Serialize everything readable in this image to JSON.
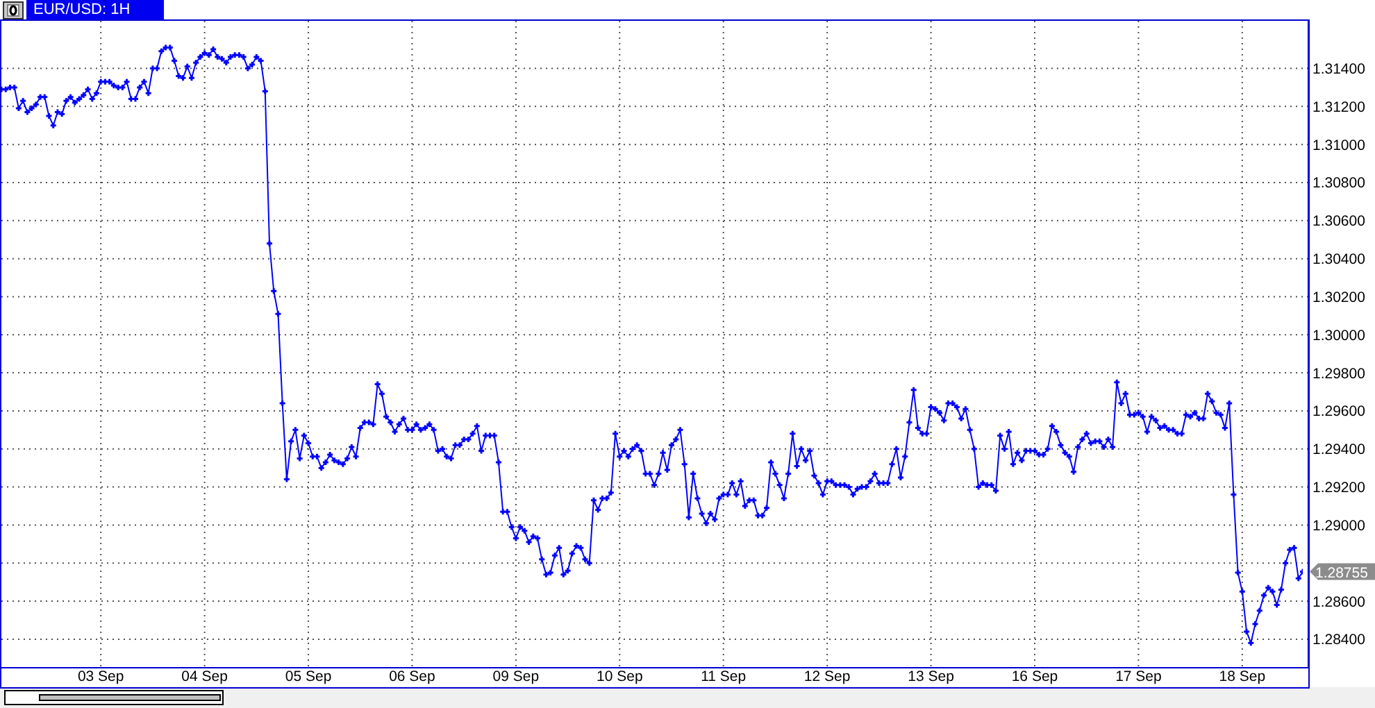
{
  "chart_data": {
    "type": "line",
    "title": "EUR/USD: 1H",
    "categories": [
      null,
      null,
      null,
      null,
      null,
      null,
      null,
      null,
      null,
      null,
      null,
      null,
      null,
      null,
      null,
      null,
      null,
      null,
      null,
      null,
      null,
      null,
      null,
      "03 Sep",
      null,
      null,
      null,
      null,
      null,
      null,
      null,
      null,
      null,
      null,
      null,
      null,
      null,
      null,
      null,
      null,
      null,
      null,
      null,
      null,
      null,
      null,
      null,
      "04 Sep",
      null,
      null,
      null,
      null,
      null,
      null,
      null,
      null,
      null,
      null,
      null,
      null,
      null,
      null,
      null,
      null,
      null,
      null,
      null,
      null,
      null,
      null,
      null,
      "05 Sep",
      null,
      null,
      null,
      null,
      null,
      null,
      null,
      null,
      null,
      null,
      null,
      null,
      null,
      null,
      null,
      null,
      null,
      null,
      null,
      null,
      null,
      null,
      null,
      "06 Sep",
      null,
      null,
      null,
      null,
      null,
      null,
      null,
      null,
      null,
      null,
      null,
      null,
      null,
      null,
      null,
      null,
      null,
      null,
      null,
      null,
      null,
      null,
      null,
      "09 Sep",
      null,
      null,
      null,
      null,
      null,
      null,
      null,
      null,
      null,
      null,
      null,
      null,
      null,
      null,
      null,
      null,
      null,
      null,
      null,
      null,
      null,
      null,
      null,
      "10 Sep",
      null,
      null,
      null,
      null,
      null,
      null,
      null,
      null,
      null,
      null,
      null,
      null,
      null,
      null,
      null,
      null,
      null,
      null,
      null,
      null,
      null,
      null,
      null,
      "11 Sep",
      null,
      null,
      null,
      null,
      null,
      null,
      null,
      null,
      null,
      null,
      null,
      null,
      null,
      null,
      null,
      null,
      null,
      null,
      null,
      null,
      null,
      null,
      null,
      "12 Sep",
      null,
      null,
      null,
      null,
      null,
      null,
      null,
      null,
      null,
      null,
      null,
      null,
      null,
      null,
      null,
      null,
      null,
      null,
      null,
      null,
      null,
      null,
      null,
      "13 Sep",
      null,
      null,
      null,
      null,
      null,
      null,
      null,
      null,
      null,
      null,
      null,
      null,
      null,
      null,
      null,
      null,
      null,
      null,
      null,
      null,
      null,
      null,
      null,
      "16 Sep",
      null,
      null,
      null,
      null,
      null,
      null,
      null,
      null,
      null,
      null,
      null,
      null,
      null,
      null,
      null,
      null,
      null,
      null,
      null,
      null,
      null,
      null,
      null,
      "17 Sep",
      null,
      null,
      null,
      null,
      null,
      null,
      null,
      null,
      null,
      null,
      null,
      null,
      null,
      null,
      null,
      null,
      null,
      null,
      null,
      null,
      null,
      null,
      null,
      "18 Sep",
      null,
      null,
      null,
      null,
      null,
      null,
      null,
      null,
      null,
      null,
      null,
      null,
      null,
      null
    ],
    "values": [
      1.3129,
      1.3129,
      1.313,
      1.313,
      1.3119,
      1.3123,
      1.3117,
      1.3119,
      1.3121,
      1.3125,
      1.3125,
      1.3115,
      1.311,
      1.3117,
      1.3116,
      1.3123,
      1.3125,
      1.3122,
      1.3124,
      1.3126,
      1.3129,
      1.3124,
      1.3127,
      1.3133,
      1.3133,
      1.3133,
      1.3131,
      1.313,
      1.313,
      1.3133,
      1.3124,
      1.3124,
      1.313,
      1.3133,
      1.3127,
      1.314,
      1.314,
      1.3149,
      1.3151,
      1.3151,
      1.3144,
      1.3136,
      1.3135,
      1.3141,
      1.3135,
      1.3143,
      1.3146,
      1.3148,
      1.3147,
      1.315,
      1.3146,
      1.3145,
      1.3143,
      1.3146,
      1.3147,
      1.3147,
      1.3146,
      1.314,
      1.3142,
      1.3146,
      1.3144,
      1.3128,
      1.3048,
      1.3023,
      1.3011,
      1.2964,
      1.2924,
      1.2944,
      1.295,
      1.2935,
      1.2947,
      1.2943,
      1.2936,
      1.2936,
      1.293,
      1.2933,
      1.2937,
      1.2934,
      1.2933,
      1.2932,
      1.2935,
      1.2941,
      1.2936,
      1.2951,
      1.2954,
      1.2954,
      1.2953,
      1.2974,
      1.2969,
      1.2957,
      1.2954,
      1.2949,
      1.2953,
      1.2956,
      1.295,
      1.295,
      1.2953,
      1.295,
      1.2951,
      1.2953,
      1.295,
      1.2939,
      1.294,
      1.2936,
      1.2935,
      1.2942,
      1.2942,
      1.2945,
      1.2945,
      1.2948,
      1.2952,
      1.2939,
      1.2947,
      1.2947,
      1.2947,
      1.2933,
      1.2907,
      1.2907,
      1.2899,
      1.2893,
      1.2899,
      1.2897,
      1.2891,
      1.2894,
      1.2893,
      1.2882,
      1.2874,
      1.2875,
      1.2884,
      1.2888,
      1.2874,
      1.2876,
      1.2885,
      1.2889,
      1.2888,
      1.2882,
      1.288,
      1.2913,
      1.2908,
      1.2914,
      1.2914,
      1.2917,
      1.2948,
      1.2936,
      1.2939,
      1.2936,
      1.294,
      1.2942,
      1.2939,
      1.2927,
      1.2927,
      1.2921,
      1.2927,
      1.2938,
      1.2929,
      1.2942,
      1.2945,
      1.295,
      1.2932,
      1.2904,
      1.2927,
      1.2914,
      1.2906,
      1.2901,
      1.2906,
      1.2903,
      1.2914,
      1.2916,
      1.2916,
      1.2922,
      1.2916,
      1.2923,
      1.291,
      1.2913,
      1.2913,
      1.2905,
      1.2905,
      1.2909,
      1.2933,
      1.2927,
      1.2921,
      1.2914,
      1.2927,
      1.2948,
      1.2931,
      1.294,
      1.2934,
      1.2939,
      1.2926,
      1.2922,
      1.2916,
      1.2923,
      1.2923,
      1.2921,
      1.2921,
      1.2921,
      1.292,
      1.2916,
      1.2919,
      1.292,
      1.292,
      1.2923,
      1.2927,
      1.2922,
      1.2922,
      1.2922,
      1.2932,
      1.294,
      1.2925,
      1.2936,
      1.2954,
      1.2971,
      1.2951,
      1.2948,
      1.2948,
      1.2962,
      1.2961,
      1.2959,
      1.2955,
      1.2964,
      1.2964,
      1.2962,
      1.2956,
      1.2961,
      1.295,
      1.294,
      1.292,
      1.2922,
      1.2921,
      1.2921,
      1.2918,
      1.2947,
      1.294,
      1.2949,
      1.2932,
      1.2938,
      1.2934,
      1.2939,
      1.2939,
      1.2939,
      1.2937,
      1.2937,
      1.294,
      1.2952,
      1.2949,
      1.2942,
      1.2938,
      1.2936,
      1.2928,
      1.2941,
      1.2945,
      1.2948,
      1.2943,
      1.2944,
      1.2944,
      1.2941,
      1.2945,
      1.2941,
      1.2975,
      1.2964,
      1.2969,
      1.2958,
      1.2958,
      1.2959,
      1.2957,
      1.2949,
      1.2957,
      1.2955,
      1.2951,
      1.2952,
      1.295,
      1.295,
      1.2948,
      1.2948,
      1.2958,
      1.2957,
      1.2959,
      1.2956,
      1.2956,
      1.2969,
      1.2965,
      1.2959,
      1.2958,
      1.2951,
      1.2964,
      1.2916,
      1.2875,
      1.2865,
      1.2844,
      1.2838,
      1.2848,
      1.2855,
      1.2863,
      1.2867,
      1.2865,
      1.2858,
      1.2866,
      1.288,
      1.2887,
      1.2888,
      1.2872,
      1.28755
    ],
    "color": "#0000ff",
    "marker": "cross",
    "line_style": "solid",
    "grid": true,
    "ylim": [
      1.2825,
      1.3165
    ],
    "yticks": [
      {
        "value": 1.284,
        "label": "1.28400"
      },
      {
        "value": 1.286,
        "label": "1.28600"
      },
      {
        "value": 1.288,
        "label": null
      },
      {
        "value": 1.29,
        "label": "1.29000"
      },
      {
        "value": 1.292,
        "label": "1.29200"
      },
      {
        "value": 1.294,
        "label": "1.29400"
      },
      {
        "value": 1.296,
        "label": "1.29600"
      },
      {
        "value": 1.298,
        "label": "1.29800"
      },
      {
        "value": 1.3,
        "label": "1.30000"
      },
      {
        "value": 1.302,
        "label": "1.30200"
      },
      {
        "value": 1.304,
        "label": "1.30400"
      },
      {
        "value": 1.306,
        "label": "1.30600"
      },
      {
        "value": 1.308,
        "label": "1.30800"
      },
      {
        "value": 1.31,
        "label": "1.31000"
      },
      {
        "value": 1.312,
        "label": "1.31200"
      },
      {
        "value": 1.314,
        "label": "1.31400"
      }
    ],
    "annotations": [
      "1.28755"
    ]
  }
}
